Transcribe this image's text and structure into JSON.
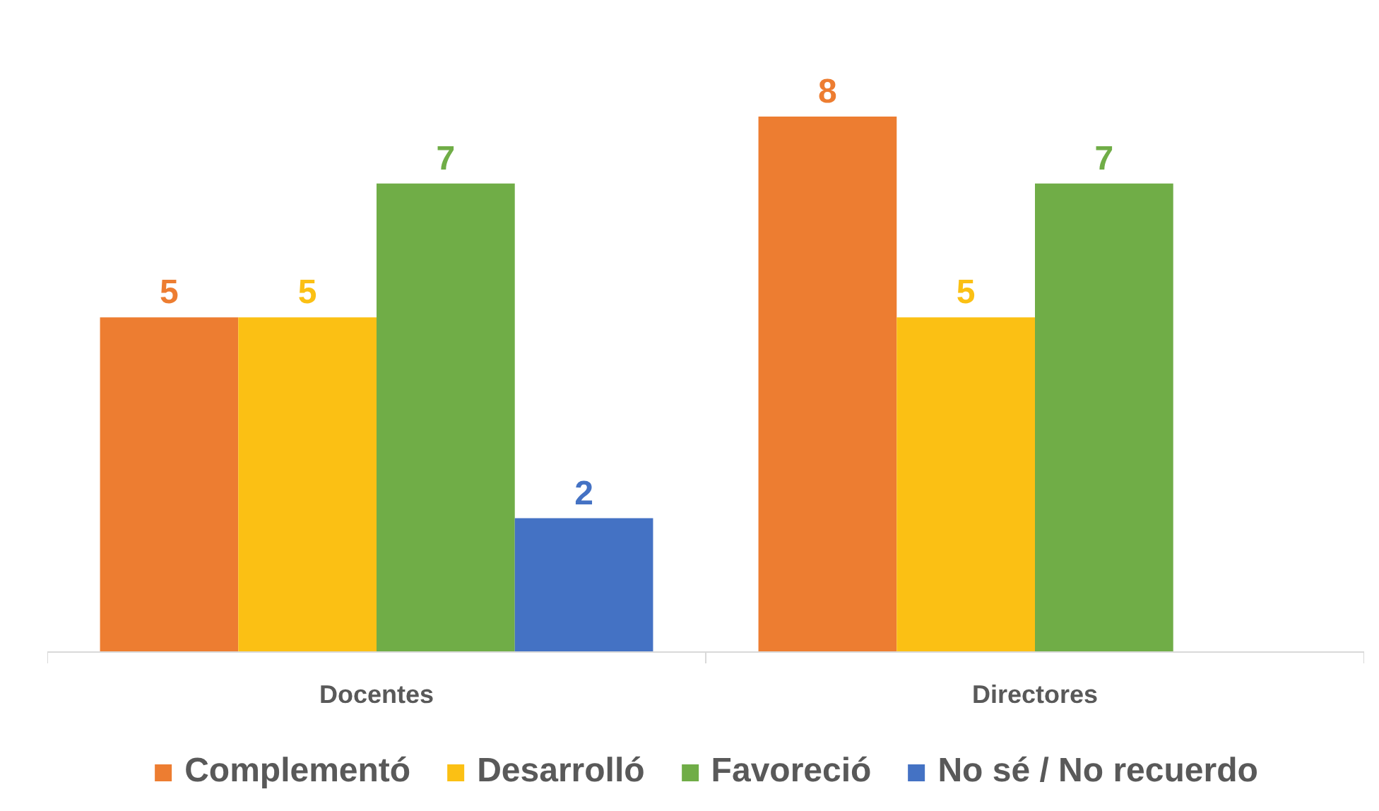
{
  "chart_data": {
    "type": "bar",
    "categories": [
      "Docentes",
      "Directores"
    ],
    "series": [
      {
        "name": "Complementó",
        "color": "#ed7d31",
        "values": [
          5,
          8
        ]
      },
      {
        "name": "Desarrolló",
        "color": "#fbc014",
        "values": [
          5,
          5
        ]
      },
      {
        "name": "Favoreció",
        "color": "#70ad47",
        "values": [
          7,
          7
        ]
      },
      {
        "name": "No sé / No recuerdo",
        "color": "#4472c4",
        "values": [
          2,
          null
        ]
      }
    ],
    "tick_labels": "x",
    "data_labels": true,
    "legend": "bottom"
  }
}
